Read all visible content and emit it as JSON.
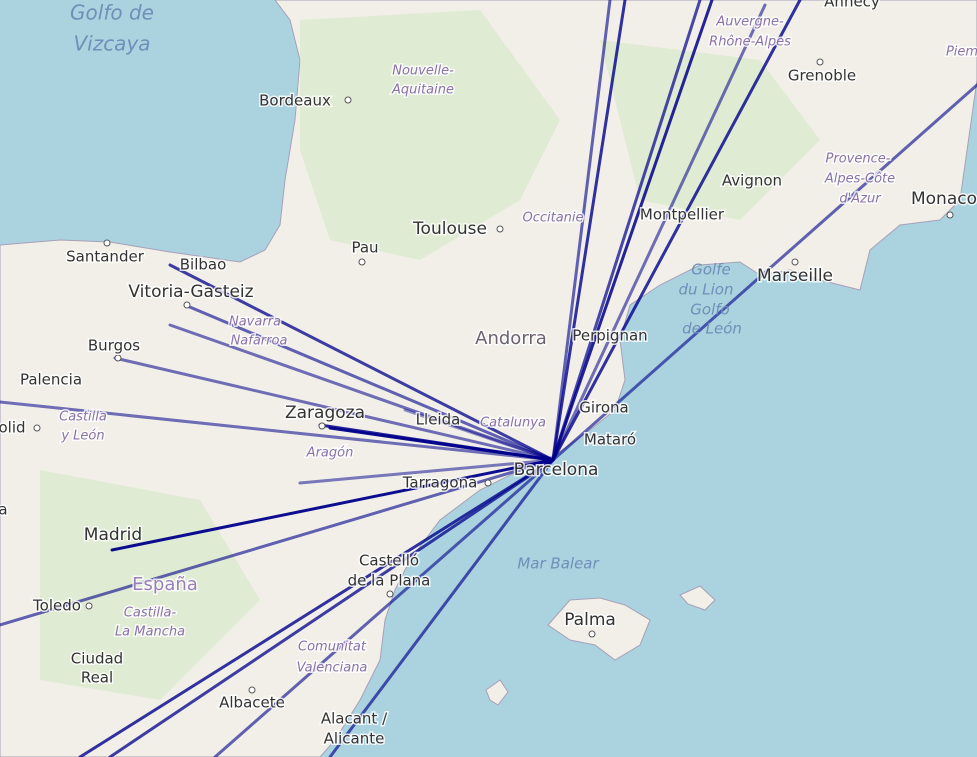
{
  "seas": {
    "biscay": [
      "Golfo de",
      "Vizcaya"
    ],
    "lion": [
      "Golfe",
      "du Lion",
      "Golfo",
      "de León"
    ],
    "balear": "Mar Balear"
  },
  "countries": [
    "Andorra",
    "España"
  ],
  "cities": [
    "Bordeaux",
    "Toulouse",
    "Pau",
    "Santander",
    "Bilbao",
    "Vitoria-Gasteiz",
    "Burgos",
    "Palencia",
    "olid",
    "Zaragoza",
    "Lleida",
    "Tarragona",
    "Barcelona",
    "Girona",
    "Mataró",
    "Perpignan",
    "Montpellier",
    "Avignon",
    "Marseille",
    "Monaco",
    "Grenoble",
    "Annecy",
    "Madrid",
    "Toledo",
    "Ciudad",
    "Real",
    "Albacete",
    "Alacant /",
    "Alicante",
    "Castelló",
    "de la Plana",
    "Palma",
    "a"
  ],
  "regions": [
    "Nouvelle-",
    "Aquitaine",
    "Occitanie",
    "Auvergne-",
    "Rhône-Alpes",
    "Provence-",
    "Alpes-Côte",
    "d'Azur",
    "Navarra",
    "Nafarroa",
    "Castilla",
    "y León",
    "Aragón",
    "Catalunya",
    "Castilla-",
    "La Mancha",
    "Comunitat",
    "Valenciana",
    "Piem"
  ]
}
